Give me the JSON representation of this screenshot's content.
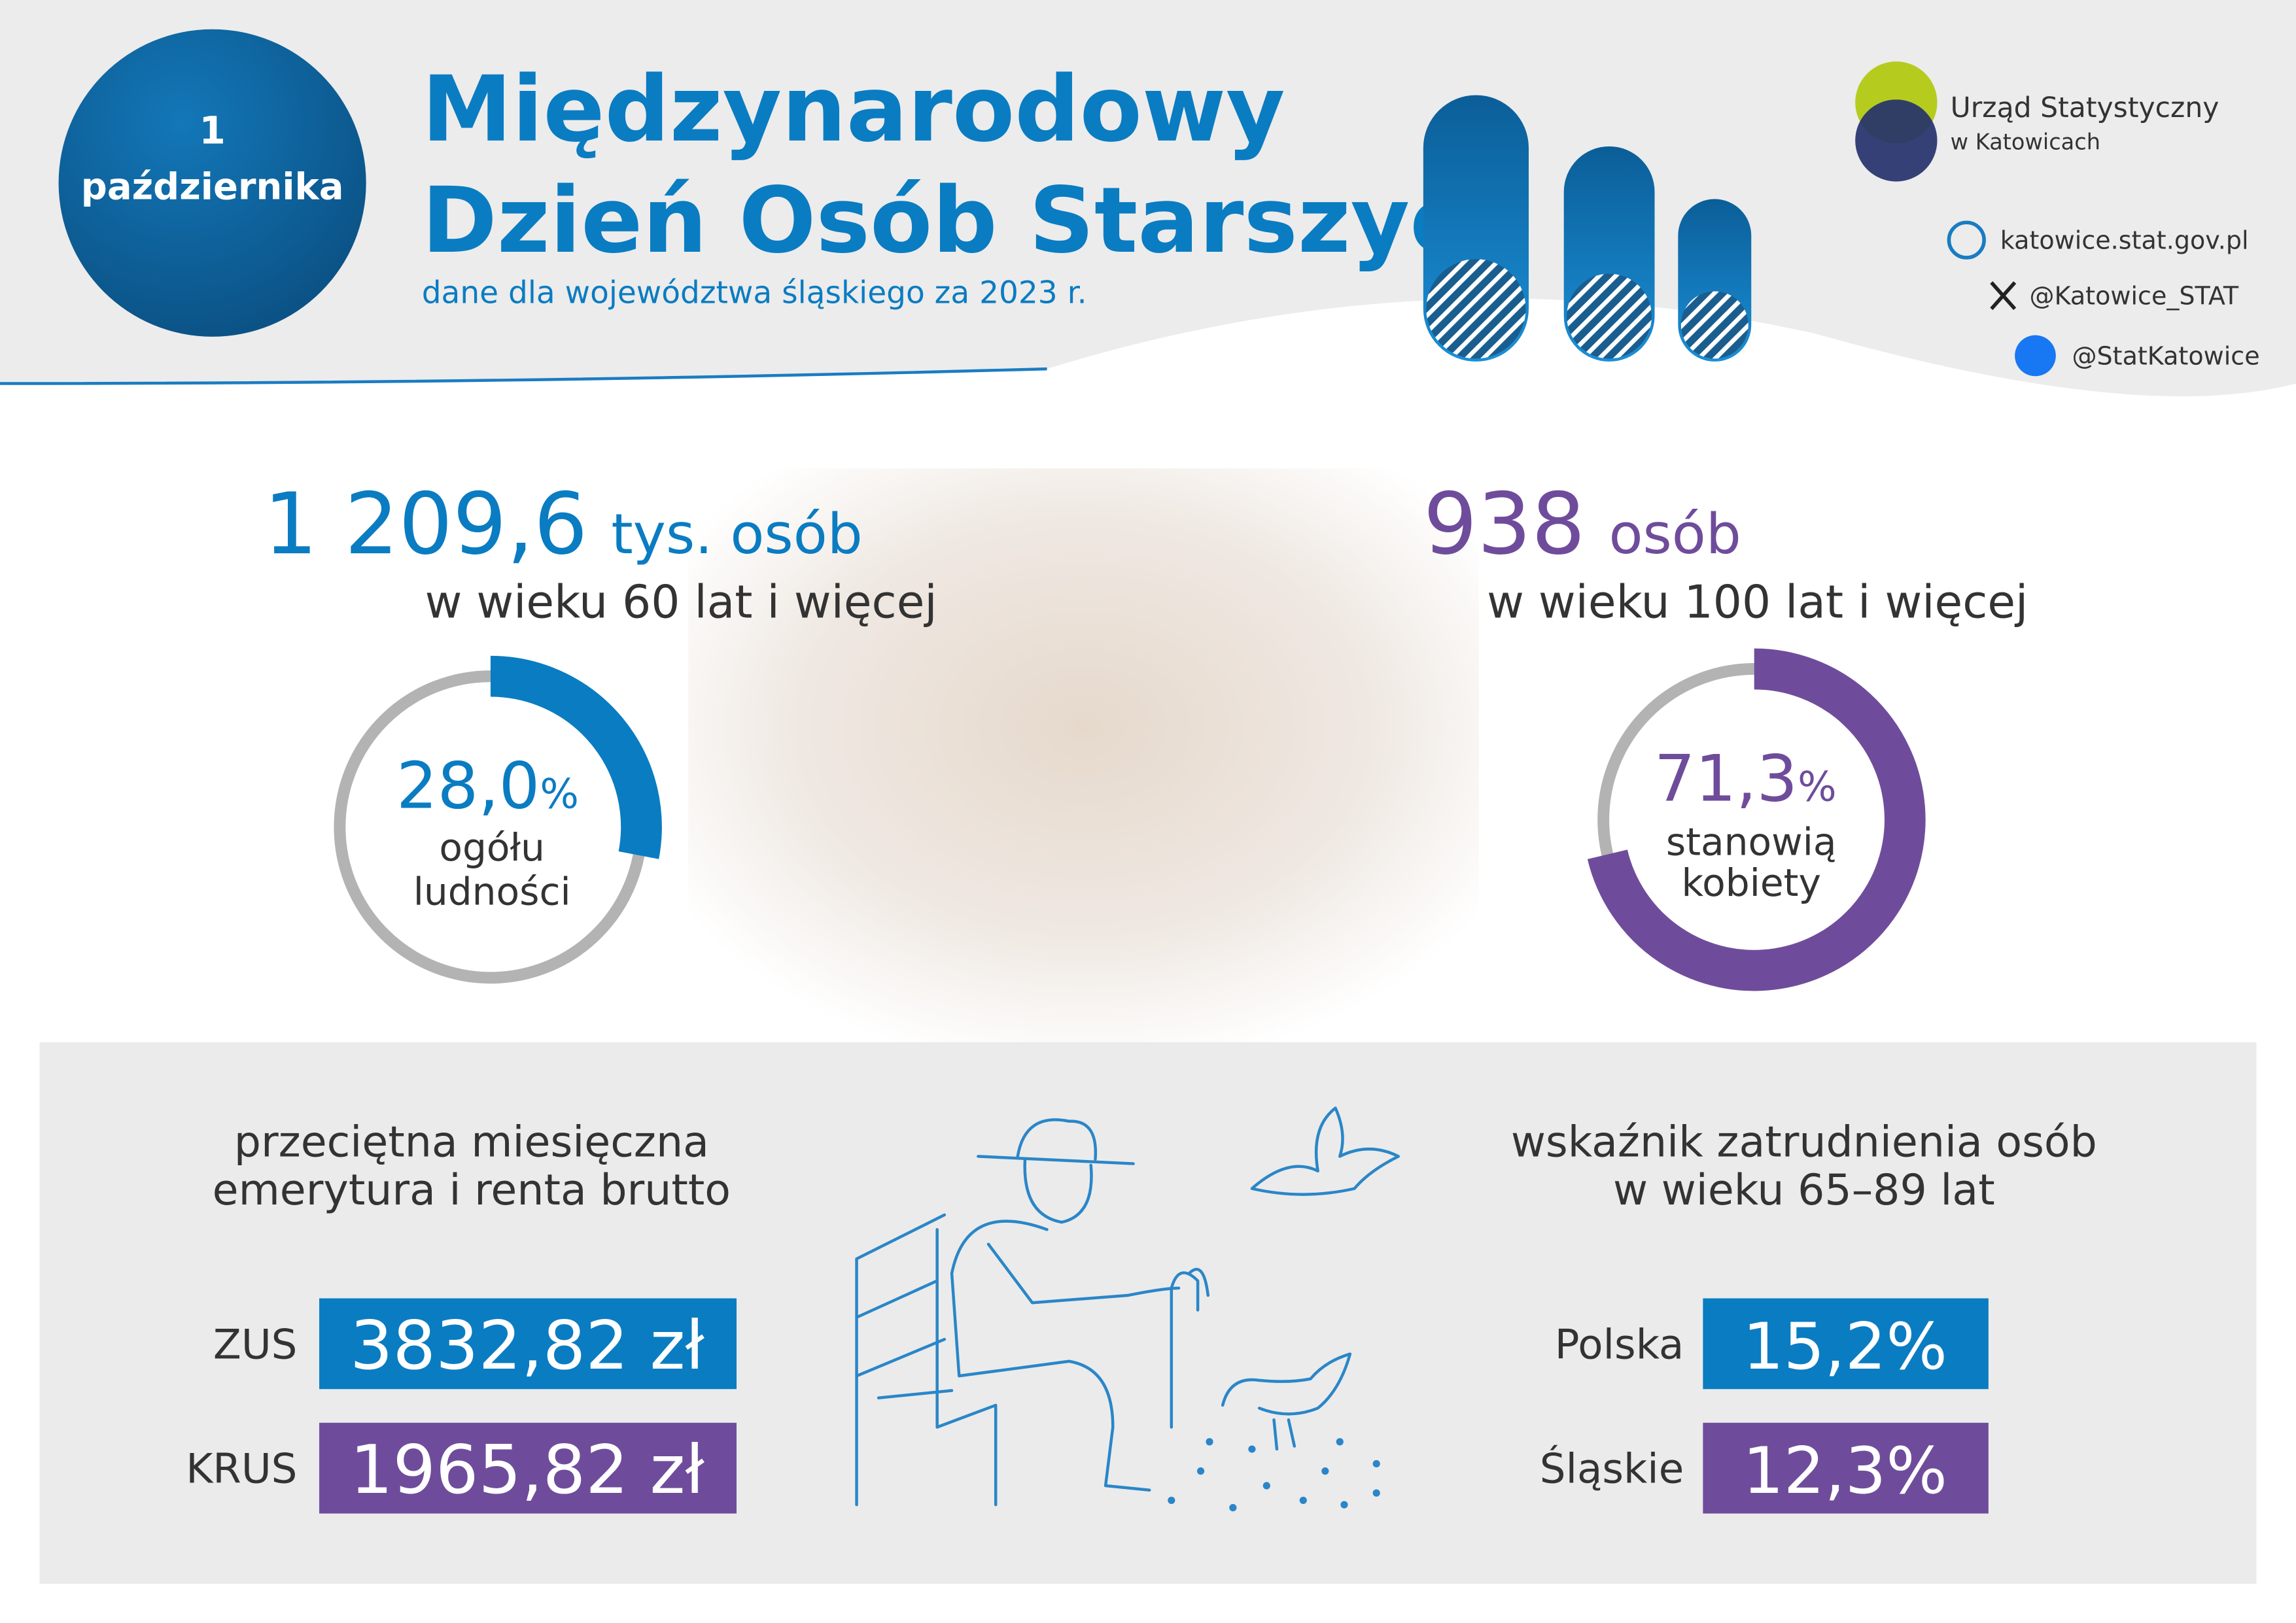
{
  "header": {
    "date_day": "1",
    "date_month": "października",
    "title_line1": "Międzynarodowy",
    "title_line2": "Dzień Osób Starszych",
    "subtitle": "dane dla województwa śląskiego za 2023 r."
  },
  "logo": {
    "name": "Urząd Statystyczny",
    "place": "w Katowicach"
  },
  "contacts": [
    "katowice.stat.gov.pl",
    "@Katowice_STAT",
    "@StatKatowice"
  ],
  "stats": [
    {
      "number": "1 209,6",
      "unit": "tys. osób",
      "desc": "w wieku 60 lat i więcej",
      "share": 28.0,
      "share_label": "28,0",
      "share_unit": "%",
      "share_desc": [
        "ogółu",
        "ludności"
      ],
      "color": "#0a7cc2"
    },
    {
      "number": "938",
      "unit": "osób",
      "desc": "w wieku 100 lat i więcej",
      "share": 71.3,
      "share_label": "71,3",
      "share_unit": "%",
      "share_desc": [
        "stanowią",
        "kobiety"
      ],
      "color": "#6f4c9b"
    }
  ],
  "pension": {
    "title": [
      "przeciętna miesięczna",
      "emerytura i renta brutto"
    ],
    "rows": [
      [
        "ZUS",
        "3832,82 zł"
      ],
      [
        "KRUS",
        "1965,82 zł"
      ]
    ]
  },
  "employment": {
    "title": [
      "wskaźnik zatrudnienia osób",
      "w wieku 65–89 lat"
    ],
    "rows": [
      [
        "Polska",
        "15,2%"
      ],
      [
        "Śląskie",
        "12,3%"
      ]
    ]
  }
}
